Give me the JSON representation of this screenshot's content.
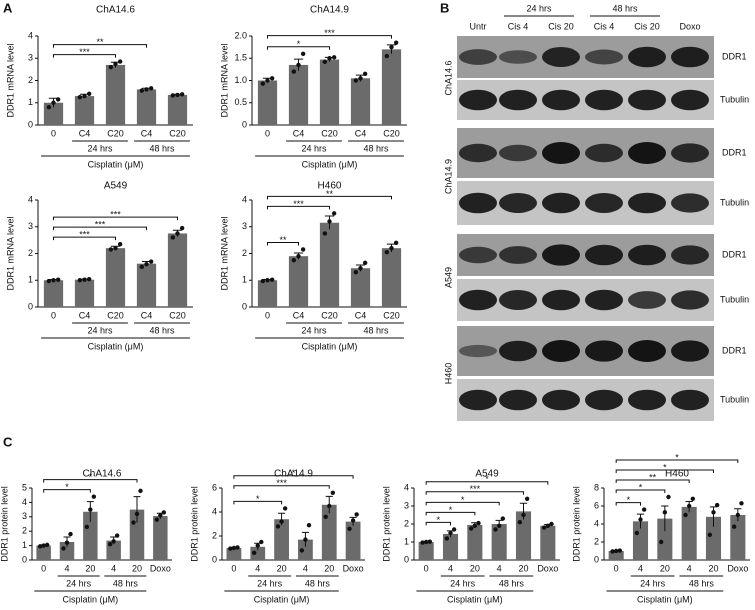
{
  "panel_labels": [
    "A",
    "B",
    "C"
  ],
  "chart_data": [
    {
      "type": "bar",
      "title": "ChA14.6",
      "y_label": "DDR1 mRNA level",
      "x_label": "Cisplatin (μM)",
      "color": "#6b6b6b",
      "categories": [
        "0",
        "C4",
        "C20",
        "C4",
        "C20"
      ],
      "groups": [
        "24 hrs",
        "48 hrs"
      ],
      "values": [
        1.0,
        1.3,
        2.7,
        1.6,
        1.35
      ],
      "errors": [
        0.2,
        0.08,
        0.12,
        0.05,
        0.03
      ],
      "points": [
        [
          0.8,
          1.0,
          1.15
        ],
        [
          1.25,
          1.3,
          1.4
        ],
        [
          2.6,
          2.75,
          2.85
        ],
        [
          1.55,
          1.6,
          1.65
        ],
        [
          1.33,
          1.35,
          1.38
        ]
      ],
      "ylim": [
        0,
        4
      ],
      "yticks": [
        0,
        1,
        2,
        3,
        4
      ],
      "brackets": [
        {
          "text": "***",
          "from": 0,
          "to": 2
        },
        {
          "text": "**",
          "from": 0,
          "to": 3
        }
      ]
    },
    {
      "type": "bar",
      "title": "ChA14.9",
      "y_label": "DDR1 mRNA level",
      "x_label": "Cisplatin (μM)",
      "color": "#6b6b6b",
      "categories": [
        "0",
        "C4",
        "C20",
        "C4",
        "C20"
      ],
      "groups": [
        "24 hrs",
        "48 hrs"
      ],
      "values": [
        1.0,
        1.35,
        1.47,
        1.05,
        1.7
      ],
      "errors": [
        0.05,
        0.13,
        0.05,
        0.07,
        0.1
      ],
      "points": [
        [
          0.93,
          1.0,
          1.05
        ],
        [
          1.2,
          1.35,
          1.6
        ],
        [
          1.42,
          1.5,
          1.52
        ],
        [
          1.0,
          1.05,
          1.15
        ],
        [
          1.55,
          1.75,
          1.85
        ]
      ],
      "ylim": [
        0,
        2
      ],
      "yticks": [
        0,
        0.5,
        {
          "value": 1,
          "label": "1.0"
        },
        1.5,
        {
          "value": 2,
          "label": "2.0"
        }
      ],
      "brackets": [
        {
          "text": "*",
          "from": 0,
          "to": 2
        },
        {
          "text": "***",
          "from": 0,
          "to": 4
        }
      ]
    },
    {
      "type": "bar",
      "title": "A549",
      "y_label": "DDR1 mRNA level",
      "x_label": "Cisplatin (μM)",
      "color": "#6b6b6b",
      "categories": [
        "0",
        "C4",
        "C20",
        "C4",
        "C20"
      ],
      "groups": [
        "24 hrs",
        "48 hrs"
      ],
      "values": [
        1.0,
        1.02,
        2.2,
        1.62,
        2.75
      ],
      "errors": [
        0.03,
        0.02,
        0.07,
        0.08,
        0.12
      ],
      "points": [
        [
          0.97,
          1.0,
          1.02
        ],
        [
          1.0,
          1.02,
          1.04
        ],
        [
          2.15,
          2.2,
          2.35
        ],
        [
          1.5,
          1.6,
          1.7
        ],
        [
          2.6,
          2.75,
          2.95
        ]
      ],
      "ylim": [
        0,
        4
      ],
      "yticks": [
        0,
        1,
        2,
        3,
        4
      ],
      "brackets": [
        {
          "text": "***",
          "from": 0,
          "to": 2
        },
        {
          "text": "***",
          "from": 0,
          "to": 3
        },
        {
          "text": "***",
          "from": 0,
          "to": 4
        }
      ]
    },
    {
      "type": "bar",
      "title": "H460",
      "y_label": "DDR1 mRNA level",
      "x_label": "Cisplatin (μM)",
      "color": "#6b6b6b",
      "categories": [
        "0",
        "C4",
        "C20",
        "C4",
        "C20"
      ],
      "groups": [
        "24 hrs",
        "48 hrs"
      ],
      "values": [
        1.0,
        1.9,
        3.15,
        1.45,
        2.2
      ],
      "errors": [
        0.03,
        0.12,
        0.25,
        0.12,
        0.15
      ],
      "points": [
        [
          0.97,
          1.0,
          1.02
        ],
        [
          1.75,
          1.9,
          2.15
        ],
        [
          2.75,
          3.2,
          3.5
        ],
        [
          1.3,
          1.45,
          1.65
        ],
        [
          2.05,
          2.2,
          2.4
        ]
      ],
      "ylim": [
        0,
        4
      ],
      "yticks": [
        0,
        1,
        2,
        3,
        4
      ],
      "brackets": [
        {
          "text": "**",
          "from": 0,
          "to": 1
        },
        {
          "text": "***",
          "from": 0,
          "to": 2
        },
        {
          "text": "**",
          "from": 0,
          "to": 4
        }
      ]
    },
    {
      "type": "bar",
      "title": "ChA14.6",
      "y_label": "DDR1 protein level",
      "x_label": "Cisplatin (μM)",
      "color": "#6b6b6b",
      "categories": [
        "0",
        "4",
        "20",
        "4",
        "20",
        "Doxo"
      ],
      "groups": [
        "24 hrs",
        "48 hrs"
      ],
      "values": [
        1.0,
        1.25,
        3.35,
        1.35,
        3.5,
        3.05
      ],
      "errors": [
        0.05,
        0.35,
        0.7,
        0.25,
        0.9,
        0.2
      ],
      "points": [
        [
          0.95,
          1.0,
          1.05
        ],
        [
          0.8,
          1.2,
          1.8
        ],
        [
          2.3,
          3.5,
          4.4
        ],
        [
          1.1,
          1.3,
          1.7
        ],
        [
          2.6,
          3.2,
          4.8
        ],
        [
          2.8,
          3.1,
          3.3
        ]
      ],
      "ylim": [
        0,
        5
      ],
      "yticks": [
        0,
        1,
        2,
        3,
        4,
        5
      ],
      "brackets": [
        {
          "text": "*",
          "from": 0,
          "to": 2
        },
        {
          "text": "*",
          "from": 0,
          "to": 4
        }
      ]
    },
    {
      "type": "bar",
      "title": "ChA14.9",
      "y_label": "DDR1 protein level",
      "x_label": "Cisplatin (μM)",
      "color": "#6b6b6b",
      "categories": [
        "0",
        "4",
        "20",
        "4",
        "20",
        "Doxo"
      ],
      "groups": [
        "24 hrs",
        "48 hrs"
      ],
      "values": [
        1.0,
        1.1,
        3.4,
        1.7,
        4.6,
        3.2
      ],
      "errors": [
        0.05,
        0.3,
        0.5,
        0.6,
        0.7,
        0.35
      ],
      "points": [
        [
          0.95,
          1.0,
          1.05
        ],
        [
          0.6,
          1.2,
          1.5
        ],
        [
          2.8,
          3.2,
          4.3
        ],
        [
          0.8,
          1.7,
          2.9
        ],
        [
          3.6,
          4.5,
          5.6
        ],
        [
          2.6,
          3.3,
          3.8
        ]
      ],
      "ylim": [
        0,
        6
      ],
      "yticks": [
        0,
        2,
        4,
        6
      ],
      "brackets": [
        {
          "text": "*",
          "from": 0,
          "to": 2
        },
        {
          "text": "***",
          "from": 0,
          "to": 4
        },
        {
          "text": "*",
          "from": 0,
          "to": 5
        }
      ]
    },
    {
      "type": "bar",
      "title": "A549",
      "y_label": "DDR1 protein level",
      "x_label": "Cisplatin (μM)",
      "color": "#6b6b6b",
      "categories": [
        "0",
        "4",
        "20",
        "4",
        "20",
        "Doxo"
      ],
      "groups": [
        "24 hrs",
        "48 hrs"
      ],
      "values": [
        1.0,
        1.45,
        1.95,
        2.0,
        2.7,
        1.9
      ],
      "errors": [
        0.03,
        0.17,
        0.12,
        0.2,
        0.45,
        0.07
      ],
      "points": [
        [
          0.97,
          1.0,
          1.02
        ],
        [
          1.2,
          1.5,
          1.7
        ],
        [
          1.75,
          1.9,
          2.05
        ],
        [
          1.7,
          1.9,
          2.3
        ],
        [
          2.1,
          2.5,
          3.4
        ],
        [
          1.8,
          1.9,
          2.0
        ]
      ],
      "ylim": [
        0,
        4
      ],
      "yticks": [
        0,
        1,
        2,
        3,
        4
      ],
      "brackets": [
        {
          "text": "*",
          "from": 0,
          "to": 1
        },
        {
          "text": "*",
          "from": 0,
          "to": 2
        },
        {
          "text": "*",
          "from": 0,
          "to": 3
        },
        {
          "text": "***",
          "from": 0,
          "to": 4
        },
        {
          "text": "*",
          "from": 0,
          "to": 5
        }
      ]
    },
    {
      "type": "bar",
      "title": "H460",
      "y_label": "DDR1 protein level",
      "x_label": "Cisplatin (μM)",
      "color": "#6b6b6b",
      "categories": [
        "0",
        "4",
        "20",
        "4",
        "20",
        "Doxo"
      ],
      "groups": [
        "24 hrs",
        "48 hrs"
      ],
      "values": [
        1.0,
        4.3,
        4.6,
        5.9,
        4.8,
        5.0
      ],
      "errors": [
        0.05,
        0.8,
        1.4,
        0.6,
        1.1,
        0.7
      ],
      "points": [
        [
          0.95,
          1.0,
          1.05
        ],
        [
          3.0,
          4.5,
          5.6
        ],
        [
          2.0,
          5.3,
          7.0
        ],
        [
          5.0,
          6.0,
          6.8
        ],
        [
          2.8,
          5.3,
          6.1
        ],
        [
          3.7,
          5.0,
          6.3
        ]
      ],
      "ylim": [
        0,
        8
      ],
      "yticks": [
        0,
        2,
        4,
        6,
        8
      ],
      "brackets": [
        {
          "text": "*",
          "from": 0,
          "to": 1
        },
        {
          "text": "*",
          "from": 0,
          "to": 2
        },
        {
          "text": "**",
          "from": 0,
          "to": 3
        },
        {
          "text": "*",
          "from": 0,
          "to": 4
        },
        {
          "text": "*",
          "from": 0,
          "to": 5
        }
      ]
    }
  ],
  "blot": {
    "lanes": [
      "Untr",
      "Cis 4",
      "Cis 20",
      "Cis 4",
      "Cis 20",
      "Doxo"
    ],
    "time_groups": [
      "24 hrs",
      "48 hrs"
    ],
    "rows": [
      {
        "cell_line": "ChA14.6",
        "proteins": [
          "DDR1",
          "Tubulin"
        ]
      },
      {
        "cell_line": "ChA14.9",
        "proteins": [
          "DDR1",
          "Tubulin"
        ]
      },
      {
        "cell_line": "A549",
        "proteins": [
          "DDR1",
          "Tubulin"
        ]
      },
      {
        "cell_line": "H460",
        "proteins": [
          "DDR1",
          "Tubulin"
        ]
      }
    ]
  }
}
